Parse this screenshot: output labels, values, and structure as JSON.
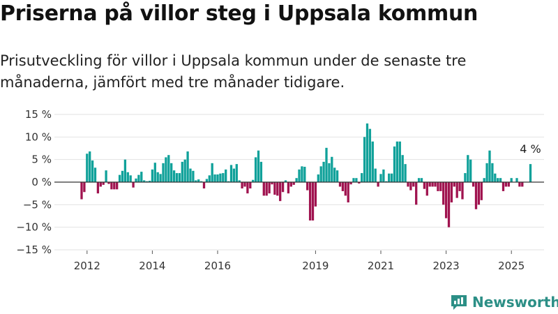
{
  "title": "Priserna på villor steg i Uppsala kommun",
  "subtitle": "Prisutveckling för villor i Uppsala kommun under de senaste tre månaderna, jämfört med tre månader tidigare.",
  "brand": {
    "name": "Newsworthy",
    "icon": "newsworthy-logo-icon",
    "color": "#2c8f86"
  },
  "colors": {
    "positive": "#10a19a",
    "negative": "#a0134f",
    "grid": "#e2e2e2",
    "baseline": "#333333"
  },
  "chart_data": {
    "type": "bar",
    "x_start": "2011-11",
    "x_step": "1 month",
    "x_range": [
      "2011-01",
      "2026-01"
    ],
    "xticks": [
      {
        "x": "2012-01",
        "label": "2012"
      },
      {
        "x": "2014-01",
        "label": "2014"
      },
      {
        "x": "2016-01",
        "label": "2016"
      },
      {
        "x": "2019-01",
        "label": "2019"
      },
      {
        "x": "2021-01",
        "label": "2021"
      },
      {
        "x": "2023-01",
        "label": "2023"
      },
      {
        "x": "2025-01",
        "label": "2025"
      }
    ],
    "ylim": [
      -15,
      15
    ],
    "yticks": [
      15,
      10,
      5,
      0,
      -5,
      -10,
      -15
    ],
    "ytick_labels": [
      "15 %",
      "10 %",
      "5 %",
      "0 %",
      "−5 %",
      "−10 %",
      "−15 %"
    ],
    "values": [
      -3.8,
      -2.2,
      6.3,
      6.8,
      4.8,
      3.2,
      -2.5,
      -1.0,
      -0.6,
      2.6,
      -0.4,
      -1.6,
      -1.6,
      -1.6,
      1.6,
      2.5,
      5.0,
      2.2,
      1.5,
      -1.2,
      0.8,
      1.6,
      2.3,
      0.4,
      0.2,
      0.3,
      2.8,
      4.3,
      2.2,
      1.8,
      4.2,
      5.5,
      6.0,
      4.2,
      2.6,
      2.0,
      2.0,
      4.5,
      5.0,
      6.8,
      3.0,
      2.5,
      0.4,
      0.6,
      0.2,
      -1.4,
      0.7,
      1.5,
      4.2,
      1.7,
      1.7,
      1.9,
      2.0,
      2.8,
      0.2,
      3.8,
      3.0,
      4.0,
      0.4,
      -1.4,
      -1.0,
      -2.5,
      -1.4,
      0.5,
      5.5,
      7.0,
      4.5,
      -3.0,
      -3.0,
      -2.5,
      -0.5,
      -2.8,
      -3.0,
      -4.2,
      -2.2,
      0.4,
      -2.5,
      -1.0,
      -0.6,
      0.9,
      2.8,
      3.5,
      3.4,
      -1.8,
      -8.5,
      -8.5,
      -5.4,
      1.7,
      3.5,
      4.5,
      7.6,
      4.2,
      5.6,
      3.2,
      2.6,
      -1.0,
      -2.0,
      -3.0,
      -4.5,
      -0.5,
      0.9,
      0.9,
      -0.3,
      2.0,
      10.0,
      13.0,
      11.8,
      9.0,
      3.0,
      -1.0,
      1.8,
      2.8,
      0.2,
      1.9,
      1.9,
      7.9,
      9.0,
      9.0,
      6.0,
      4.0,
      -1.0,
      -1.8,
      -1.0,
      -5.0,
      0.9,
      0.9,
      -1.5,
      -3.0,
      -1.0,
      -1.0,
      -1.0,
      -2.0,
      -2.0,
      -5.0,
      -8.0,
      -10.0,
      -4.5,
      -1.0,
      -3.5,
      -2.0,
      -3.8,
      2.0,
      6.0,
      5.0,
      -1.0,
      -6.0,
      -5.0,
      -4.0,
      0.9,
      4.2,
      7.0,
      4.2,
      1.9,
      0.9,
      0.9,
      -2.0,
      -1.0,
      -1.0,
      0.9,
      0.0,
      0.9,
      -1.0,
      -1.0,
      0.0,
      0.0,
      4.0
    ],
    "annotation": {
      "text": "4 %",
      "target": "last"
    }
  }
}
